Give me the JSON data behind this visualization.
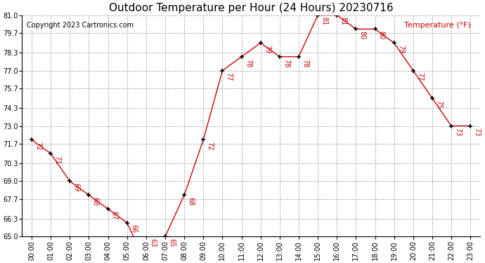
{
  "title": "Outdoor Temperature per Hour (24 Hours) 20230716",
  "copyright_text": "Copyright 2023 Cartronics.com",
  "legend_label": "Temperature (°F)",
  "hours": [
    "00:00",
    "01:00",
    "02:00",
    "03:00",
    "04:00",
    "05:00",
    "06:00",
    "07:00",
    "08:00",
    "09:00",
    "10:00",
    "11:00",
    "12:00",
    "13:00",
    "14:00",
    "15:00",
    "16:00",
    "17:00",
    "18:00",
    "19:00",
    "20:00",
    "21:00",
    "22:00",
    "23:00"
  ],
  "temperatures": [
    72,
    71,
    69,
    68,
    67,
    66,
    63,
    65,
    68,
    72,
    77,
    78,
    79,
    78,
    78,
    81,
    81,
    80,
    80,
    79,
    77,
    75,
    73,
    73
  ],
  "line_color": "#cc0000",
  "marker_color": "#000000",
  "label_color": "#cc0000",
  "bg_color": "#ffffff",
  "grid_color": "#aaaaaa",
  "ylim_min": 65.0,
  "ylim_max": 81.0,
  "ytick_values": [
    65.0,
    66.3,
    67.7,
    69.0,
    70.3,
    71.7,
    73.0,
    74.3,
    75.7,
    77.0,
    78.3,
    79.7,
    81.0
  ],
  "title_fontsize": 11,
  "copyright_fontsize": 7,
  "label_fontsize": 7,
  "legend_fontsize": 8,
  "tick_fontsize": 7
}
